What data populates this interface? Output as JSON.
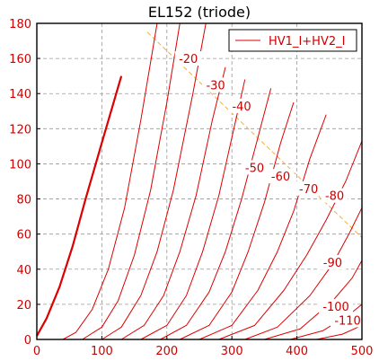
{
  "chart_data": {
    "type": "line",
    "title": "EL152 (triode)",
    "xlabel": "",
    "ylabel": "",
    "xlim": [
      0,
      500
    ],
    "ylim": [
      0,
      180
    ],
    "xticks": [
      0,
      100,
      200,
      300,
      400,
      500
    ],
    "yticks": [
      0,
      20,
      40,
      60,
      80,
      100,
      120,
      140,
      160,
      180
    ],
    "grid": true,
    "legend": {
      "position": "top-right",
      "entries": [
        "HV1_I+HV2_I"
      ]
    },
    "colors": {
      "curve": "#dd0000",
      "load_line": "#f0b040",
      "grid": "#999999",
      "tick_text": "#cc0000"
    },
    "series": [
      {
        "name": "HV1_I+HV2_I",
        "label": "",
        "bold": true,
        "x": [
          0,
          15,
          35,
          55,
          75,
          100,
          130
        ],
        "y": [
          2,
          12,
          30,
          53,
          80,
          112,
          150
        ]
      },
      {
        "label": "-20",
        "x": [
          40,
          60,
          85,
          110,
          135,
          160,
          185
        ],
        "y": [
          0,
          4,
          17,
          40,
          75,
          125,
          180
        ]
      },
      {
        "label": "-30",
        "x": [
          70,
          100,
          125,
          150,
          175,
          200,
          220
        ],
        "y": [
          0,
          7,
          22,
          48,
          85,
          135,
          180
        ]
      },
      {
        "label": "-40",
        "x": [
          100,
          130,
          160,
          185,
          210,
          240,
          260
        ],
        "y": [
          0,
          7,
          25,
          50,
          85,
          140,
          180
        ]
      },
      {
        "label": "-50",
        "x": [
          130,
          165,
          195,
          220,
          245,
          270,
          290
        ],
        "y": [
          0,
          8,
          25,
          50,
          82,
          125,
          155
        ]
      },
      {
        "label": "-60",
        "x": [
          160,
          200,
          230,
          255,
          280,
          300,
          320
        ],
        "y": [
          0,
          8,
          25,
          50,
          82,
          115,
          148
        ]
      },
      {
        "label": "-70",
        "x": [
          190,
          230,
          265,
          290,
          315,
          340,
          360
        ],
        "y": [
          0,
          8,
          27,
          50,
          80,
          115,
          143
        ]
      },
      {
        "label": "-80",
        "x": [
          220,
          265,
          300,
          325,
          350,
          375,
          395
        ],
        "y": [
          0,
          8,
          27,
          50,
          78,
          112,
          135
        ]
      },
      {
        "label": "-90",
        "x": [
          250,
          300,
          340,
          370,
          395,
          420,
          445
        ],
        "y": [
          0,
          8,
          28,
          50,
          73,
          103,
          128
        ]
      },
      {
        "label": "",
        "x": [
          280,
          335,
          380,
          415,
          445,
          475,
          500
        ],
        "y": [
          0,
          8,
          28,
          48,
          68,
          90,
          113
        ]
      },
      {
        "label": "-100",
        "x": [
          320,
          370,
          420,
          455,
          480,
          500
        ],
        "y": [
          0,
          7,
          25,
          43,
          60,
          75
        ]
      },
      {
        "label": "-110",
        "x": [
          350,
          405,
          455,
          485,
          500
        ],
        "y": [
          0,
          6,
          22,
          35,
          45
        ]
      },
      {
        "label": "",
        "x": [
          390,
          440,
          480,
          500
        ],
        "y": [
          0,
          5,
          14,
          20
        ]
      },
      {
        "label": "",
        "x": [
          430,
          470,
          500
        ],
        "y": [
          0,
          3,
          8
        ]
      }
    ],
    "contour_labels": [
      {
        "text": "-20",
        "x": 233,
        "y": 160
      },
      {
        "text": "-30",
        "x": 275,
        "y": 145
      },
      {
        "text": "-40",
        "x": 315,
        "y": 133
      },
      {
        "text": "-50",
        "x": 335,
        "y": 98
      },
      {
        "text": "-60",
        "x": 375,
        "y": 93
      },
      {
        "text": "-70",
        "x": 418,
        "y": 86
      },
      {
        "text": "-80",
        "x": 458,
        "y": 82
      },
      {
        "text": "-90",
        "x": 455,
        "y": 44
      },
      {
        "text": "-100",
        "x": 460,
        "y": 19
      },
      {
        "text": "-110",
        "x": 478,
        "y": 11
      }
    ],
    "load_line": {
      "x": [
        170,
        500
      ],
      "y": [
        175,
        58
      ]
    }
  }
}
